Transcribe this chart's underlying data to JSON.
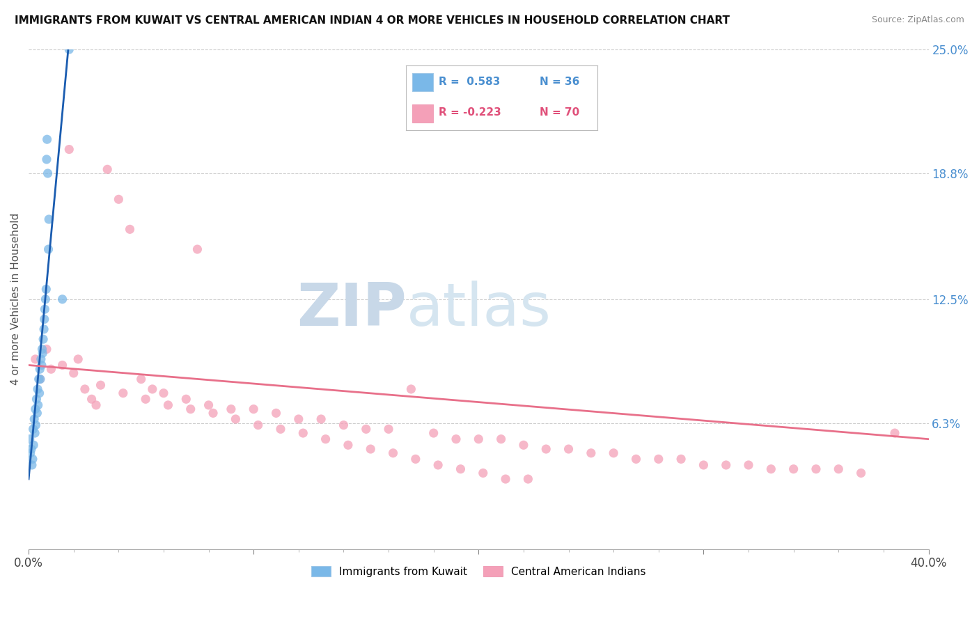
{
  "title": "IMMIGRANTS FROM KUWAIT VS CENTRAL AMERICAN INDIAN 4 OR MORE VEHICLES IN HOUSEHOLD CORRELATION CHART",
  "source": "Source: ZipAtlas.com",
  "ylabel": "4 or more Vehicles in Household",
  "xlim": [
    0.0,
    40.0
  ],
  "ylim": [
    0.0,
    25.0
  ],
  "right_yticks": [
    6.3,
    12.5,
    18.8,
    25.0
  ],
  "right_yticklabels": [
    "6.3%",
    "12.5%",
    "18.8%",
    "25.0%"
  ],
  "legend_r1": "R =  0.583",
  "legend_n1": "N = 36",
  "legend_r2": "R = -0.223",
  "legend_n2": "N = 70",
  "blue_color": "#7ab8e8",
  "pink_color": "#f4a0b8",
  "blue_line_color": "#1a5cb0",
  "pink_line_color": "#e8708a",
  "watermark_zip": "ZIP",
  "watermark_atlas": "atlas",
  "blue_scatter_x": [
    0.05,
    0.08,
    0.12,
    0.15,
    0.18,
    0.2,
    0.22,
    0.25,
    0.28,
    0.3,
    0.32,
    0.35,
    0.38,
    0.4,
    0.42,
    0.45,
    0.48,
    0.5,
    0.52,
    0.55,
    0.58,
    0.6,
    0.62,
    0.65,
    0.68,
    0.7,
    0.72,
    0.75,
    0.78,
    0.8,
    0.82,
    0.85,
    0.88,
    0.9,
    1.5,
    1.8
  ],
  "blue_scatter_y": [
    5.5,
    4.8,
    5.0,
    4.2,
    4.5,
    6.0,
    5.2,
    6.5,
    5.8,
    7.0,
    6.2,
    7.5,
    6.8,
    8.0,
    7.2,
    8.5,
    7.8,
    9.0,
    8.5,
    9.5,
    9.2,
    10.0,
    9.8,
    10.5,
    11.0,
    11.5,
    12.0,
    12.5,
    13.0,
    19.5,
    20.5,
    18.8,
    15.0,
    16.5,
    12.5,
    25.0
  ],
  "pink_scatter_x": [
    0.3,
    0.5,
    0.8,
    1.0,
    1.5,
    1.8,
    2.0,
    2.2,
    2.5,
    2.8,
    3.0,
    3.5,
    4.0,
    4.5,
    5.0,
    5.5,
    6.0,
    7.0,
    7.5,
    8.0,
    9.0,
    10.0,
    11.0,
    12.0,
    13.0,
    14.0,
    15.0,
    16.0,
    17.0,
    18.0,
    19.0,
    20.0,
    21.0,
    22.0,
    23.0,
    24.0,
    25.0,
    26.0,
    27.0,
    28.0,
    29.0,
    30.0,
    31.0,
    32.0,
    33.0,
    34.0,
    35.0,
    36.0,
    37.0,
    38.5,
    3.2,
    4.2,
    5.2,
    6.2,
    7.2,
    8.2,
    9.2,
    10.2,
    11.2,
    12.2,
    13.2,
    14.2,
    15.2,
    16.2,
    17.2,
    18.2,
    19.2,
    20.2,
    21.2,
    22.2
  ],
  "pink_scatter_y": [
    9.5,
    8.5,
    10.0,
    9.0,
    9.2,
    20.0,
    8.8,
    9.5,
    8.0,
    7.5,
    7.2,
    19.0,
    17.5,
    16.0,
    8.5,
    8.0,
    7.8,
    7.5,
    15.0,
    7.2,
    7.0,
    7.0,
    6.8,
    6.5,
    6.5,
    6.2,
    6.0,
    6.0,
    8.0,
    5.8,
    5.5,
    5.5,
    5.5,
    5.2,
    5.0,
    5.0,
    4.8,
    4.8,
    4.5,
    4.5,
    4.5,
    4.2,
    4.2,
    4.2,
    4.0,
    4.0,
    4.0,
    4.0,
    3.8,
    5.8,
    8.2,
    7.8,
    7.5,
    7.2,
    7.0,
    6.8,
    6.5,
    6.2,
    6.0,
    5.8,
    5.5,
    5.2,
    5.0,
    4.8,
    4.5,
    4.2,
    4.0,
    3.8,
    3.5,
    3.5
  ],
  "blue_line_x0": 0.0,
  "blue_line_y0": 3.5,
  "blue_line_x1": 1.8,
  "blue_line_y1": 25.5,
  "pink_line_x0": 0.0,
  "pink_line_y0": 9.2,
  "pink_line_x1": 40.0,
  "pink_line_y1": 5.5
}
